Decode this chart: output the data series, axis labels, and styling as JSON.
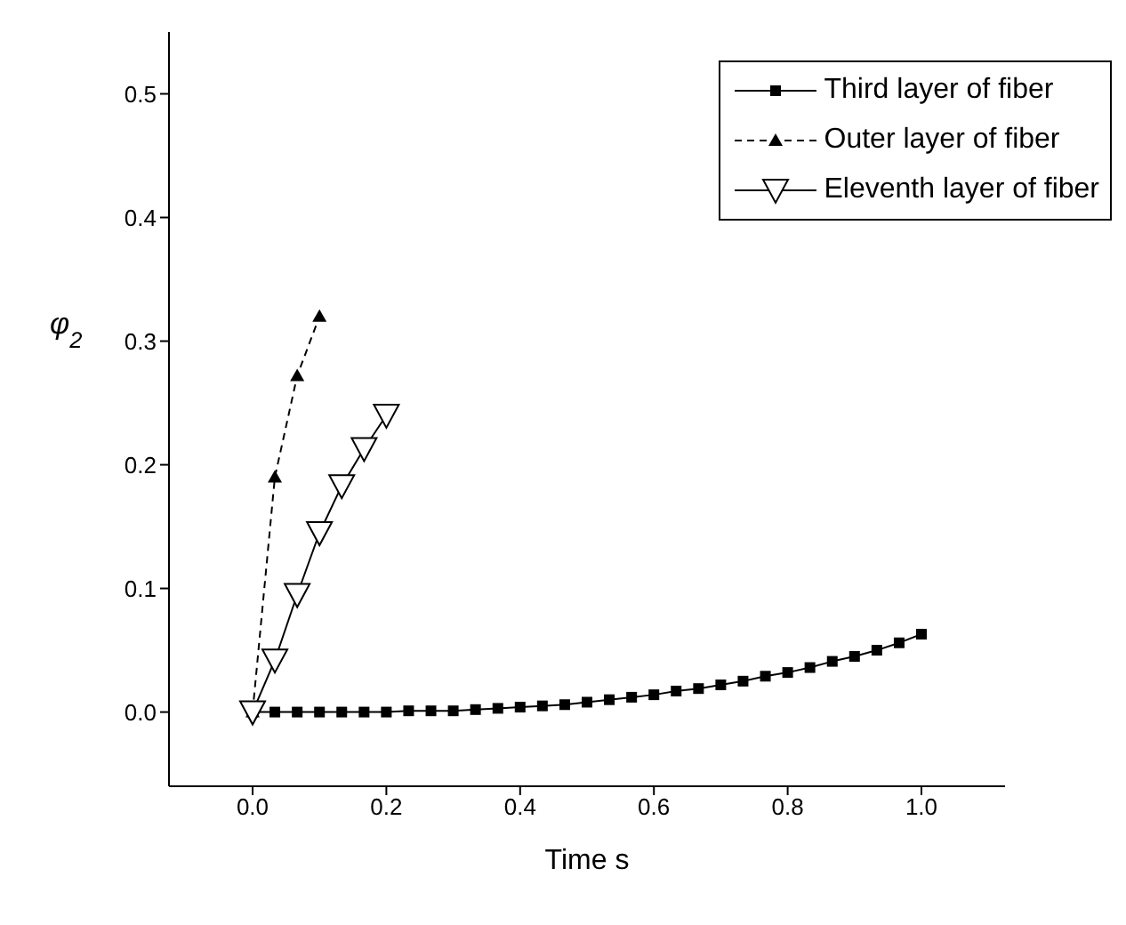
{
  "chart_data": {
    "type": "line",
    "xlabel": "Time  s",
    "ylabel": "φ$_{2}$",
    "xlim": [
      -0.125,
      1.125
    ],
    "xticks": [
      {
        "value": 0,
        "label": "0.0"
      },
      {
        "value": 0.2,
        "label": "0.2"
      },
      {
        "value": 0.4,
        "label": "0.4"
      },
      {
        "value": 0.6,
        "label": "0.6"
      },
      {
        "value": 0.8,
        "label": "0.8"
      },
      {
        "value": 1,
        "label": "1.0"
      }
    ],
    "ylim": [
      -0.06,
      0.55
    ],
    "yticks": [
      {
        "value": 0,
        "label": "0.0"
      },
      {
        "value": 0.1,
        "label": "0.1"
      },
      {
        "value": 0.2,
        "label": "0.2"
      },
      {
        "value": 0.3,
        "label": "0.3"
      },
      {
        "value": 0.4,
        "label": "0.4"
      },
      {
        "value": 0.5,
        "label": "0.5"
      }
    ],
    "grid": false,
    "legend": "top right",
    "series": [
      {
        "name": "Third layer of fiber",
        "color": "#000000",
        "marker": "square",
        "line_style": "solid",
        "x": [
          0,
          0.0333,
          0.0667,
          0.1,
          0.1333,
          0.1667,
          0.2,
          0.2333,
          0.2667,
          0.3,
          0.3333,
          0.3667,
          0.4,
          0.4333,
          0.4667,
          0.5,
          0.5333,
          0.5667,
          0.6,
          0.6333,
          0.6667,
          0.7,
          0.7333,
          0.7667,
          0.8,
          0.8333,
          0.8667,
          0.9,
          0.9333,
          0.9667,
          1
        ],
        "values": [
          0,
          0,
          0,
          0,
          0,
          0,
          0,
          0.001,
          0.001,
          0.001,
          0.002,
          0.003,
          0.004,
          0.005,
          0.006,
          0.008,
          0.01,
          0.012,
          0.014,
          0.017,
          0.019,
          0.022,
          0.025,
          0.029,
          0.032,
          0.036,
          0.041,
          0.045,
          0.05,
          0.056,
          0.063
        ]
      },
      {
        "name": "Outer layer of fiber",
        "color": "#000000",
        "marker": "triangle",
        "line_style": "dashed",
        "x": [
          0,
          0.0333,
          0.0667,
          0.1
        ],
        "values": [
          0,
          0.19,
          0.272,
          0.32
        ]
      },
      {
        "name": "Eleventh layer of fiber",
        "color": "#000000",
        "marker": "triangle_down",
        "line_style": "solid",
        "x": [
          0,
          0.0333,
          0.0667,
          0.1,
          0.1333,
          0.1667,
          0.2
        ],
        "values": [
          0,
          0.042,
          0.095,
          0.145,
          0.183,
          0.213,
          0.24
        ]
      }
    ]
  }
}
